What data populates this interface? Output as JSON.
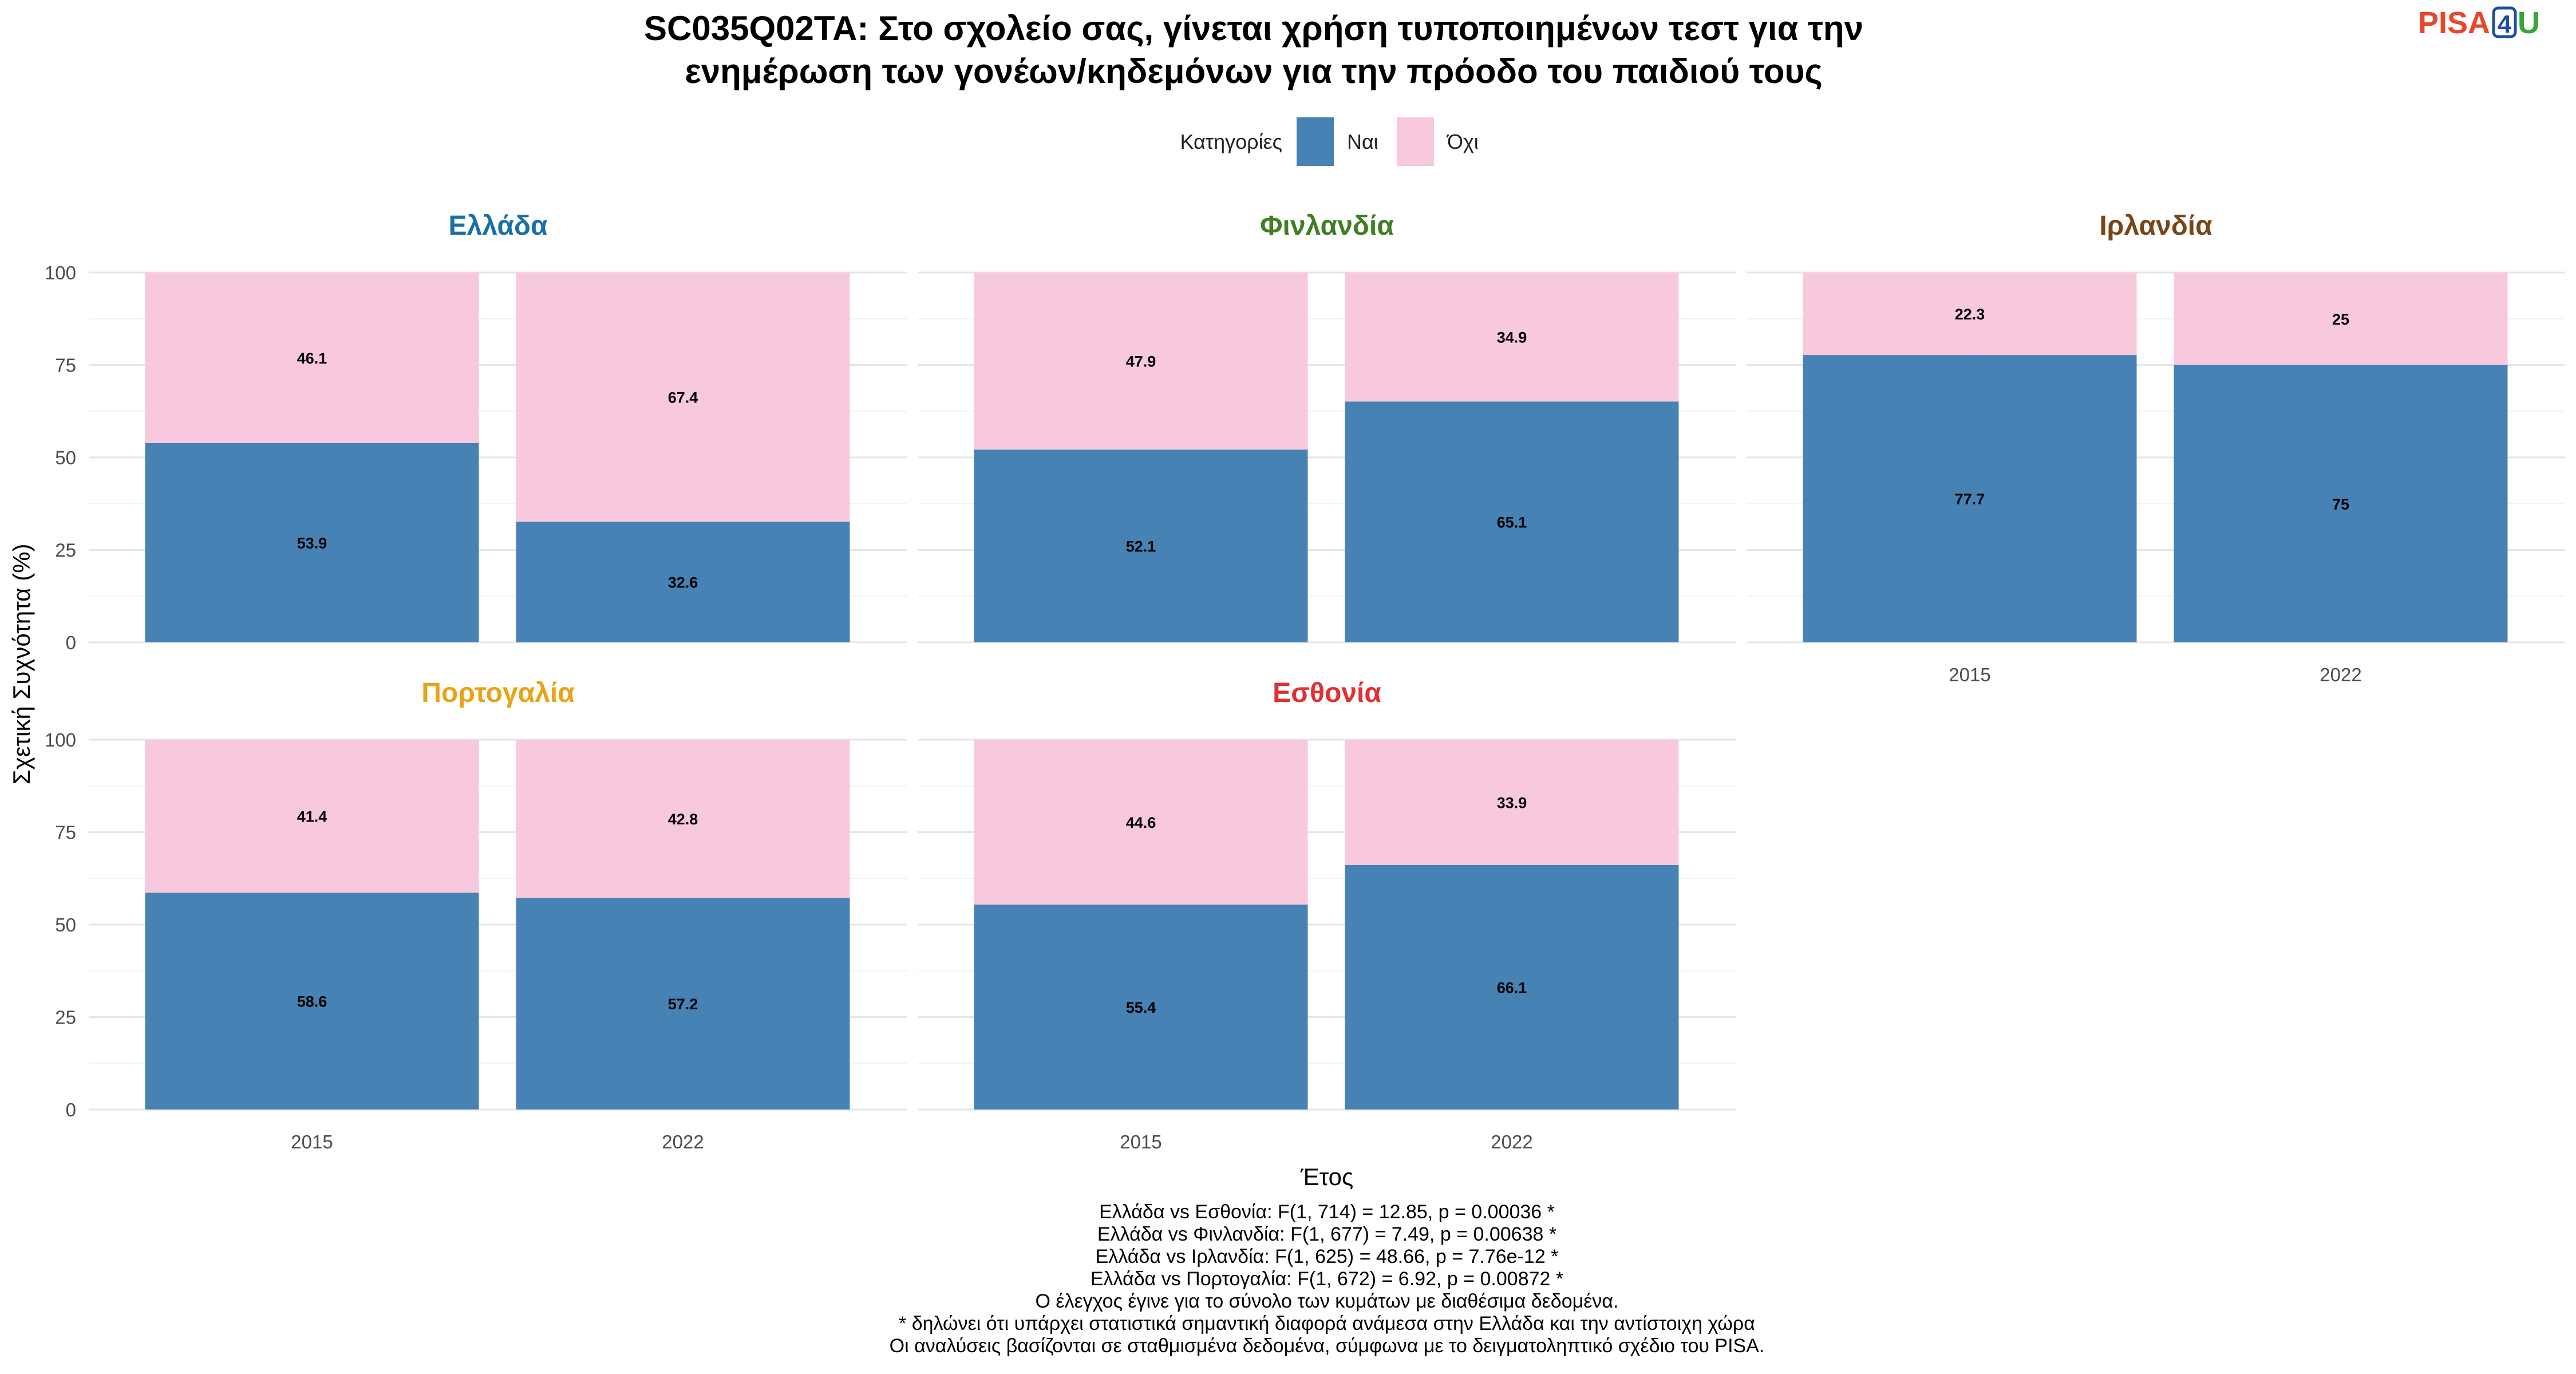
{
  "title_lines": [
    "SC035Q02TA: Στο σχολείο σας, γίνεται χρήση τυποποιημένων τεστ για την",
    "ενημέρωση των γονέων/κηδεμόνων για την πρόοδο του παιδιού τους"
  ],
  "logo": {
    "part1": "PISA",
    "part2": "4",
    "part3": "U",
    "color1": "#e8472b",
    "color2": "#1f4e9c",
    "color3": "#3aa538"
  },
  "legend": {
    "title": "Κατηγορίες",
    "items": [
      {
        "label": "Ναι",
        "color": "#4682b4"
      },
      {
        "label": "Όχι",
        "color": "#f8c8dc"
      }
    ]
  },
  "chart_data": {
    "type": "bar",
    "stacked": true,
    "categories": [
      "2015",
      "2022"
    ],
    "xlabel": "Έτος",
    "ylabel": "Σχετική Συχνότητα (%)",
    "ylim": [
      0,
      100
    ],
    "yticks": [
      0,
      25,
      50,
      75,
      100
    ],
    "grid": true,
    "legend_position": "top",
    "panels": [
      {
        "name": "Ελλάδα",
        "color": "#1a6fa8",
        "series": [
          {
            "name": "Ναι",
            "values": [
              53.9,
              32.6
            ]
          },
          {
            "name": "Όχι",
            "values": [
              46.1,
              67.4
            ]
          }
        ]
      },
      {
        "name": "Φινλανδία",
        "color": "#3d7f22",
        "series": [
          {
            "name": "Ναι",
            "values": [
              52.1,
              65.1
            ]
          },
          {
            "name": "Όχι",
            "values": [
              47.9,
              34.9
            ]
          }
        ]
      },
      {
        "name": "Ιρλανδία",
        "color": "#7a4516",
        "series": [
          {
            "name": "Ναι",
            "values": [
              77.7,
              75
            ]
          },
          {
            "name": "Όχι",
            "values": [
              22.3,
              25
            ]
          }
        ]
      },
      {
        "name": "Πορτογαλία",
        "color": "#e8a317",
        "series": [
          {
            "name": "Ναι",
            "values": [
              58.6,
              57.2
            ]
          },
          {
            "name": "Όχι",
            "values": [
              41.4,
              42.8
            ]
          }
        ]
      },
      {
        "name": "Εσθονία",
        "color": "#e03030",
        "series": [
          {
            "name": "Ναι",
            "values": [
              55.4,
              66.1
            ]
          },
          {
            "name": "Όχι",
            "values": [
              44.6,
              33.9
            ]
          }
        ]
      }
    ]
  },
  "caption_lines": [
    "Ελλάδα vs Εσθονία: F(1, 714) = 12.85, p = 0.00036 *",
    "Ελλάδα vs Φινλανδία: F(1, 677) = 7.49, p = 0.00638 *",
    "Ελλάδα vs Ιρλανδία: F(1, 625) = 48.66, p = 7.76e-12 *",
    "Ελλάδα vs Πορτογαλία: F(1, 672) = 6.92, p = 0.00872 *",
    "Ο έλεγχος έγινε για το σύνολο των κυμάτων με διαθέσιμα δεδομένα.",
    "* δηλώνει ότι υπάρχει στατιστικά σημαντική διαφορά ανάμεσα στην Ελλάδα και την αντίστοιχη χώρα",
    "Οι αναλύσεις βασίζονται σε σταθμισμένα δεδομένα, σύμφωνα με το δειγματοληπτικό σχέδιο του PISA."
  ]
}
